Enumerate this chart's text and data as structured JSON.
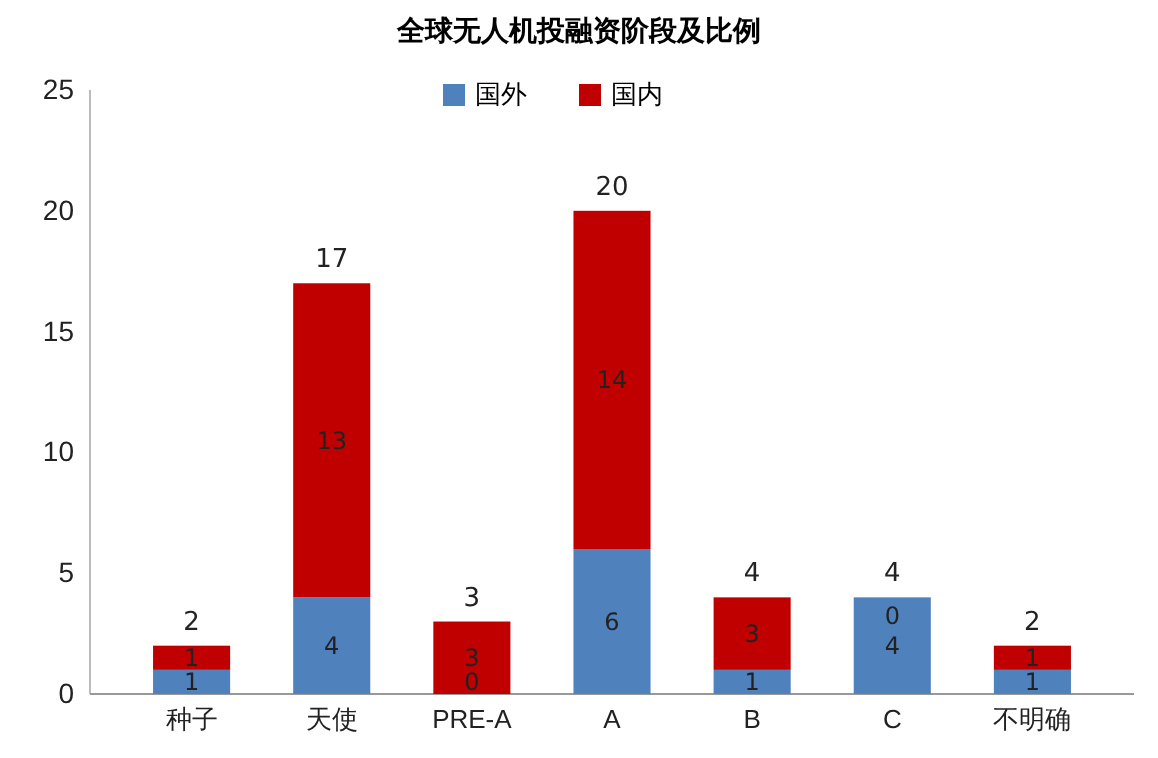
{
  "chart_data": {
    "type": "bar",
    "title": "全球无人机投融资阶段及比例",
    "categories": [
      "种子",
      "天使",
      "PRE-A",
      "A",
      "B",
      "C",
      "不明确"
    ],
    "series": [
      {
        "name": "国外",
        "color": "#4f81bd",
        "values": [
          1,
          4,
          0,
          6,
          1,
          4,
          1
        ]
      },
      {
        "name": "国内",
        "color": "#c00000",
        "values": [
          1,
          13,
          3,
          14,
          3,
          0,
          1
        ]
      }
    ],
    "stacked": true,
    "data_labels": true,
    "totals": [
      "2",
      "17",
      "3",
      "20",
      "4",
      "4",
      "2"
    ],
    "ylim": [
      0,
      25
    ],
    "yticks": [
      0,
      5,
      10,
      15,
      20,
      25
    ],
    "grid": false,
    "legend": "top"
  }
}
